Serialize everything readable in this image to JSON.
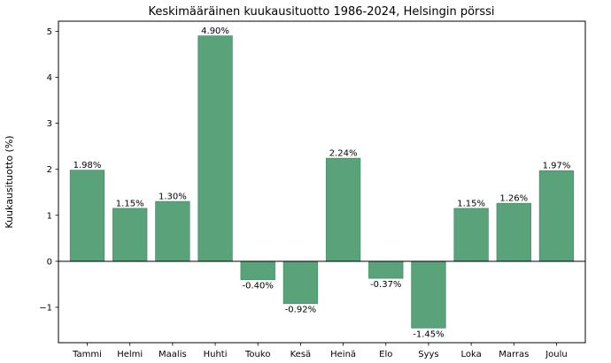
{
  "chart_data": {
    "type": "bar",
    "title": "Keskimääräinen kuukausituotto 1986-2024, Helsingin pörssi",
    "xlabel": "",
    "ylabel": "Kuukausituotto (%)",
    "categories": [
      "Tammi",
      "Helmi",
      "Maalis",
      "Huhti",
      "Touko",
      "Kesä",
      "Heinä",
      "Elo",
      "Syys",
      "Loka",
      "Marras",
      "Joulu"
    ],
    "values": [
      1.98,
      1.15,
      1.3,
      4.9,
      -0.4,
      -0.92,
      2.24,
      -0.37,
      -1.45,
      1.15,
      1.26,
      1.97
    ],
    "value_labels": [
      "1.98%",
      "1.15%",
      "1.30%",
      "4.90%",
      "-0.40%",
      "-0.92%",
      "2.24%",
      "-0.37%",
      "-1.45%",
      "1.15%",
      "1.26%",
      "1.97%"
    ],
    "ylim": [
      -1.77,
      5.22
    ],
    "yticks": [
      -1,
      0,
      1,
      2,
      3,
      4,
      5
    ],
    "ytick_labels": [
      "−1",
      "0",
      "1",
      "2",
      "3",
      "4",
      "5"
    ],
    "grid": false,
    "zero_line": true,
    "bar_color": "#5aa37a",
    "bar_edge_color": "#4a8f68"
  }
}
